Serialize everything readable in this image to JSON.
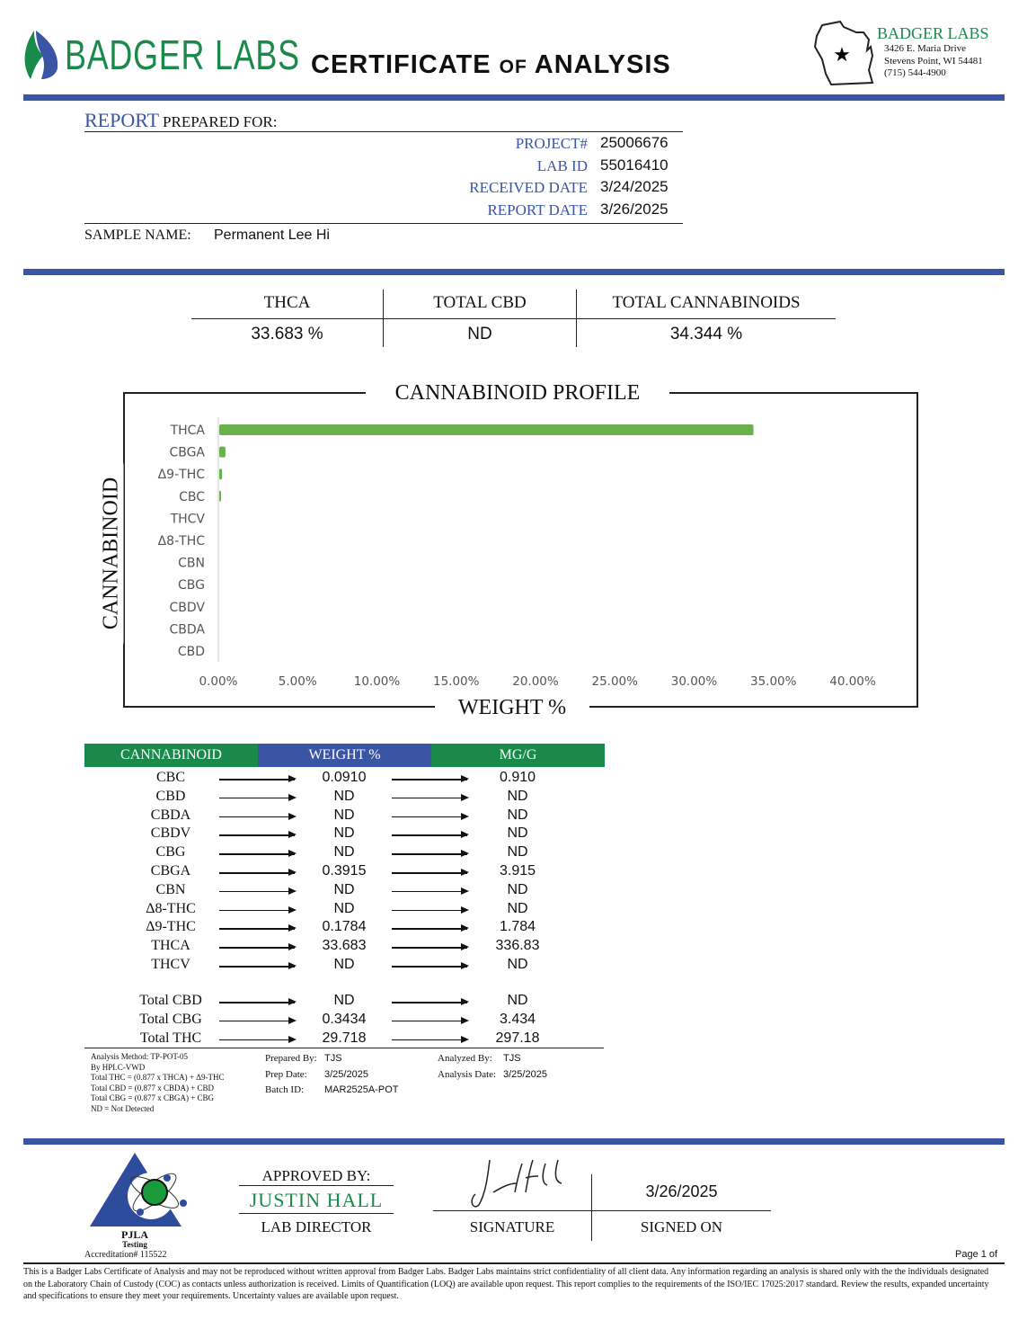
{
  "header": {
    "logo_text": "BADGER LABS",
    "title_parts": [
      "CERTIFICATE",
      "OF",
      "ANALYSIS"
    ],
    "lab_name": "BADGER LABS",
    "address_line1": "3426 E. Maria Drive",
    "address_line2": "Stevens Point, WI 54481",
    "phone": "(715) 544-4900"
  },
  "report": {
    "heading_main": "REPORT",
    "heading_rest": "PREPARED FOR:",
    "fields": [
      {
        "label": "PROJECT#",
        "value": "25006676"
      },
      {
        "label": "LAB ID",
        "value": "55016410"
      },
      {
        "label": "RECEIVED DATE",
        "value": "3/24/2025"
      },
      {
        "label": "REPORT DATE",
        "value": "3/26/2025"
      }
    ],
    "sample_label": "SAMPLE NAME:",
    "sample_name": "Permanent Lee Hi"
  },
  "summary": [
    {
      "label": "THCA",
      "value": "33.683 %"
    },
    {
      "label": "TOTAL CBD",
      "value": "ND"
    },
    {
      "label": "TOTAL CANNABINOIDS",
      "value": "34.344 %"
    }
  ],
  "chart_data": {
    "type": "bar",
    "orientation": "horizontal",
    "title": "CANNABINOID PROFILE",
    "xlabel": "WEIGHT %",
    "ylabel": "CANNABINOID",
    "categories": [
      "THCA",
      "CBGA",
      "Δ9-THC",
      "CBC",
      "THCV",
      "Δ8-THC",
      "CBN",
      "CBG",
      "CBDV",
      "CBDA",
      "CBD"
    ],
    "values": [
      33.683,
      0.3915,
      0.1784,
      0.091,
      0,
      0,
      0,
      0,
      0,
      0,
      0
    ],
    "xlim": [
      0,
      40
    ],
    "xticks": [
      "0.00%",
      "5.00%",
      "10.00%",
      "15.00%",
      "20.00%",
      "25.00%",
      "30.00%",
      "35.00%",
      "40.00%"
    ],
    "bar_color": "#6ab04c",
    "grid": false
  },
  "results": {
    "headers": [
      "CANNABINOID",
      "WEIGHT %",
      "MG/G"
    ],
    "header_colors": [
      "#1a8a4a",
      "#3a55a4",
      "#1a8a4a"
    ],
    "rows": [
      {
        "name": "CBC",
        "weight": "0.0910",
        "mg": "0.910"
      },
      {
        "name": "CBD",
        "weight": "ND",
        "mg": "ND"
      },
      {
        "name": "CBDA",
        "weight": "ND",
        "mg": "ND"
      },
      {
        "name": "CBDV",
        "weight": "ND",
        "mg": "ND"
      },
      {
        "name": "CBG",
        "weight": "ND",
        "mg": "ND"
      },
      {
        "name": "CBGA",
        "weight": "0.3915",
        "mg": "3.915"
      },
      {
        "name": "CBN",
        "weight": "ND",
        "mg": "ND"
      },
      {
        "name": "Δ8-THC",
        "weight": "ND",
        "mg": "ND"
      },
      {
        "name": "Δ9-THC",
        "weight": "0.1784",
        "mg": "1.784"
      },
      {
        "name": "THCA",
        "weight": "33.683",
        "mg": "336.83"
      },
      {
        "name": "THCV",
        "weight": "ND",
        "mg": "ND"
      }
    ],
    "totals": [
      {
        "name": "Total CBD",
        "weight": "ND",
        "mg": "ND"
      },
      {
        "name": "Total CBG",
        "weight": "0.3434",
        "mg": "3.434"
      },
      {
        "name": "Total THC",
        "weight": "29.718",
        "mg": "297.18"
      }
    ]
  },
  "notes": {
    "method_lines": [
      "Analysis Method: TP-POT-05",
      "By HPLC-VWD",
      "Total THC = (0.877 x  THCA) + Δ9-THC",
      "Total CBD = (0.877 x  CBDA) + CBD",
      "Total CBG = (0.877 x  CBGA) + CBG",
      "ND = Not Detected"
    ],
    "prepared_by_label": "Prepared By:",
    "prepared_by": "TJS",
    "prep_date_label": "Prep Date:",
    "prep_date": "3/25/2025",
    "batch_label": "Batch ID:",
    "batch": "MAR2525A-POT",
    "analyzed_by_label": "Analyzed By:",
    "analyzed_by": "TJS",
    "analysis_date_label": "Analysis Date:",
    "analysis_date": "3/25/2025"
  },
  "approval": {
    "pjla": "PJLA",
    "testing": "Testing",
    "accreditation": "Accreditation# 115522",
    "approved_by": "APPROVED BY:",
    "name": "JUSTIN HALL",
    "role": "LAB DIRECTOR",
    "signature_label": "SIGNATURE",
    "signed_on_label": "SIGNED ON",
    "signed_date": "3/26/2025",
    "page": "Page 1 of"
  },
  "disclaimer": "This is a Badger Labs Certificate of Analysis and may not be reproduced without written approval from Badger Labs. Badger Labs maintains strict confidentiality of all client data. Any information regarding an analysis is shared only with the the individuals designated on the Laboratory Chain of Custody (COC) as contacts unless authorization is received. Limits of Quantification (LOQ) are available upon request. This report complies to the requirements of the ISO/IEC 17025:2017 standard. Review the results, expanded uncertainty and specifications to ensure they meet your requirements. Uncertainty values are available upon request."
}
